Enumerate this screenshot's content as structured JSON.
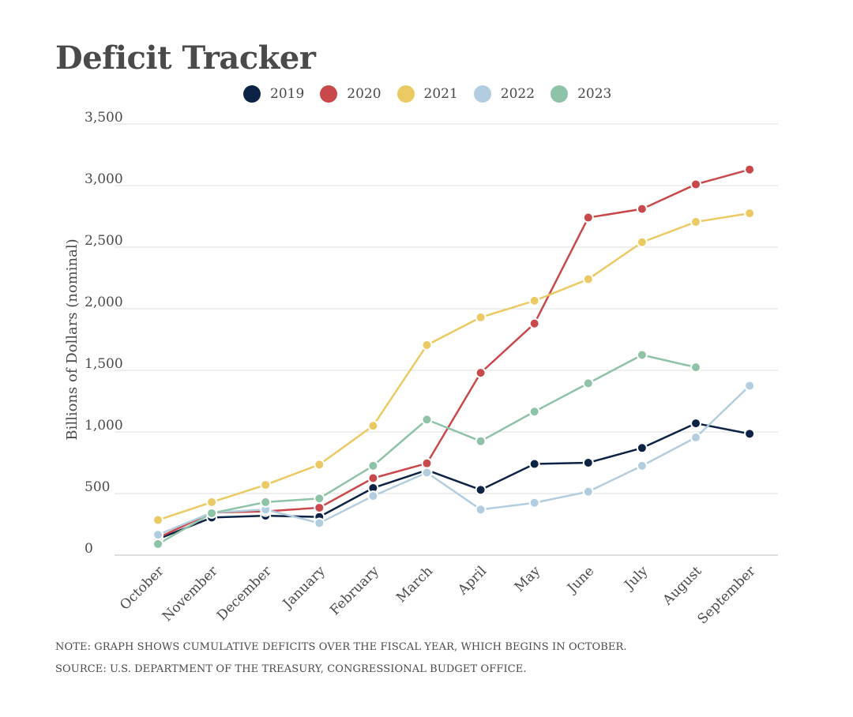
{
  "chart_data": {
    "type": "line",
    "title": "Deficit Tracker",
    "xlabel": "",
    "ylabel": "Billions of Dollars (nominal)",
    "ylim": [
      0,
      3500
    ],
    "yticks": [
      0,
      500,
      1000,
      1500,
      2000,
      2500,
      3000,
      3500
    ],
    "ytick_labels": [
      "0",
      "500",
      "1,000",
      "1,500",
      "2,000",
      "2,500",
      "3,000",
      "3,500"
    ],
    "categories": [
      "October",
      "November",
      "December",
      "January",
      "February",
      "March",
      "April",
      "May",
      "June",
      "July",
      "August",
      "September"
    ],
    "legend_position": "top-center",
    "grid": true,
    "series": [
      {
        "name": "2019",
        "color": "#0d2346",
        "values": [
          130,
          305,
          320,
          310,
          545,
          690,
          530,
          740,
          750,
          870,
          1070,
          985
        ]
      },
      {
        "name": "2020",
        "color": "#c9484b",
        "values": [
          140,
          345,
          355,
          385,
          625,
          745,
          1480,
          1880,
          2740,
          2810,
          3010,
          3130
        ]
      },
      {
        "name": "2021",
        "color": "#ecca63",
        "values": [
          285,
          430,
          570,
          735,
          1050,
          1705,
          1930,
          2065,
          2240,
          2540,
          2705,
          2775
        ]
      },
      {
        "name": "2022",
        "color": "#b3cde0",
        "values": [
          165,
          345,
          370,
          260,
          480,
          670,
          370,
          425,
          515,
          725,
          955,
          1375
        ]
      },
      {
        "name": "2023",
        "color": "#8fc3a7",
        "values": [
          90,
          340,
          430,
          460,
          725,
          1100,
          925,
          1165,
          1395,
          1625,
          1525,
          null
        ]
      }
    ]
  },
  "notes": {
    "note": "NOTE: GRAPH SHOWS CUMULATIVE DEFICITS OVER THE FISCAL YEAR, WHICH BEGINS IN OCTOBER.",
    "source": "SOURCE: U.S. DEPARTMENT OF THE TREASURY, CONGRESSIONAL BUDGET OFFICE."
  }
}
